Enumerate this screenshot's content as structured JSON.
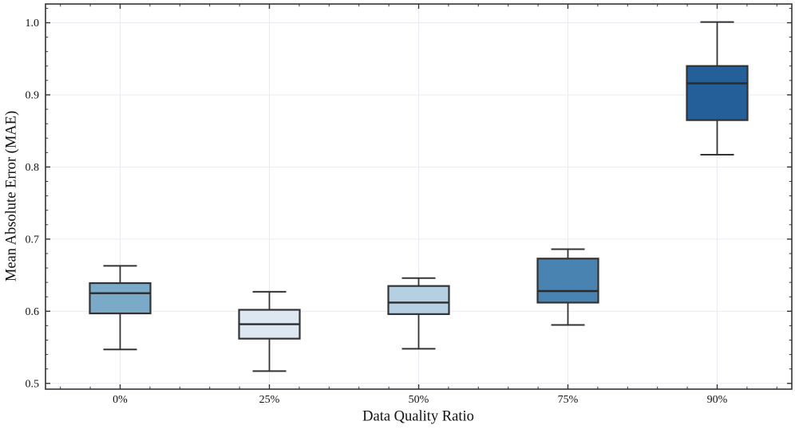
{
  "chart_data": {
    "type": "boxplot",
    "title": "",
    "xlabel": "Data Quality Ratio",
    "ylabel": "Mean Absolute Error (MAE)",
    "categories": [
      "0%",
      "25%",
      "50%",
      "75%",
      "90%"
    ],
    "y_ticks": [
      0.5,
      0.6,
      0.7,
      0.8,
      0.9,
      1.0
    ],
    "y_tick_labels": [
      "0.5",
      "0.6",
      "0.7",
      "0.8",
      "0.9",
      "1.0"
    ],
    "ylim": [
      0.492,
      1.026
    ],
    "grid": true,
    "legend": "none",
    "boxes": [
      {
        "category": "0%",
        "whisker_low": 0.547,
        "q1": 0.597,
        "median": 0.625,
        "q3": 0.639,
        "whisker_high": 0.663,
        "fill": "#7AAAC8"
      },
      {
        "category": "25%",
        "whisker_low": 0.517,
        "q1": 0.562,
        "median": 0.582,
        "q3": 0.602,
        "whisker_high": 0.627,
        "fill": "#DCE7F2"
      },
      {
        "category": "50%",
        "whisker_low": 0.548,
        "q1": 0.596,
        "median": 0.612,
        "q3": 0.635,
        "whisker_high": 0.646,
        "fill": "#B6D0E3"
      },
      {
        "category": "75%",
        "whisker_low": 0.581,
        "q1": 0.612,
        "median": 0.628,
        "q3": 0.673,
        "whisker_high": 0.686,
        "fill": "#4883B1"
      },
      {
        "category": "90%",
        "whisker_low": 0.817,
        "q1": 0.865,
        "median": 0.916,
        "q3": 0.94,
        "whisker_high": 1.001,
        "fill": "#255F9A"
      }
    ],
    "colors": {
      "box_edge": "#333333",
      "median_line": "#2B2B2B",
      "whisker": "#333333",
      "grid": "#EAEBF2",
      "spine": "#333333",
      "tick": "#333333",
      "tick_label": "#111111",
      "background": "#FFFFFF"
    }
  }
}
